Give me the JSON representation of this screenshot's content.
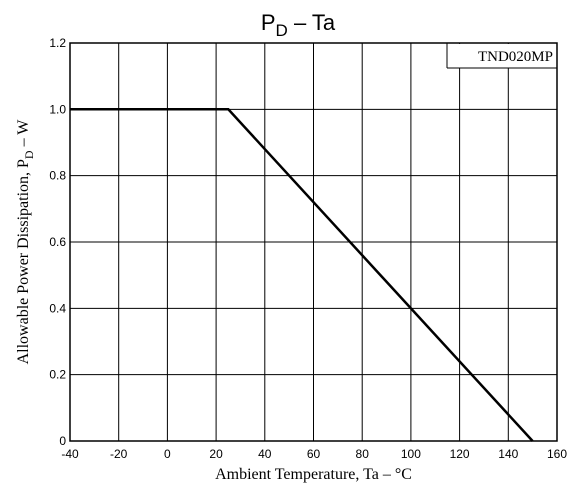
{
  "chart_data": {
    "type": "line",
    "title": {
      "main": "P",
      "sub": "D",
      "rest": " – Ta"
    },
    "annotation": "TND020MP",
    "xlabel": "Ambient Temperature, Ta  –  °C",
    "ylabel": {
      "main": "Allowable Power Dissipation, P",
      "sub": "D",
      "rest": "  –  W"
    },
    "xlim": [
      -40,
      160
    ],
    "ylim": [
      0,
      1.2
    ],
    "x_ticks": [
      -40,
      -20,
      0,
      20,
      40,
      60,
      80,
      100,
      120,
      140,
      160
    ],
    "y_ticks": [
      0,
      0.2,
      0.4,
      0.6,
      0.8,
      1.0,
      1.2
    ],
    "x_tick_labels": [
      "-40",
      "-20",
      "0",
      "20",
      "40",
      "60",
      "80",
      "100",
      "120",
      "140",
      "160"
    ],
    "y_tick_labels": [
      "0",
      "0.2",
      "0.4",
      "0.6",
      "0.8",
      "1.0",
      "1.2"
    ],
    "grid": true,
    "series": [
      {
        "x": [
          -40,
          25,
          150
        ],
        "y": [
          1.0,
          1.0,
          0
        ]
      }
    ]
  }
}
